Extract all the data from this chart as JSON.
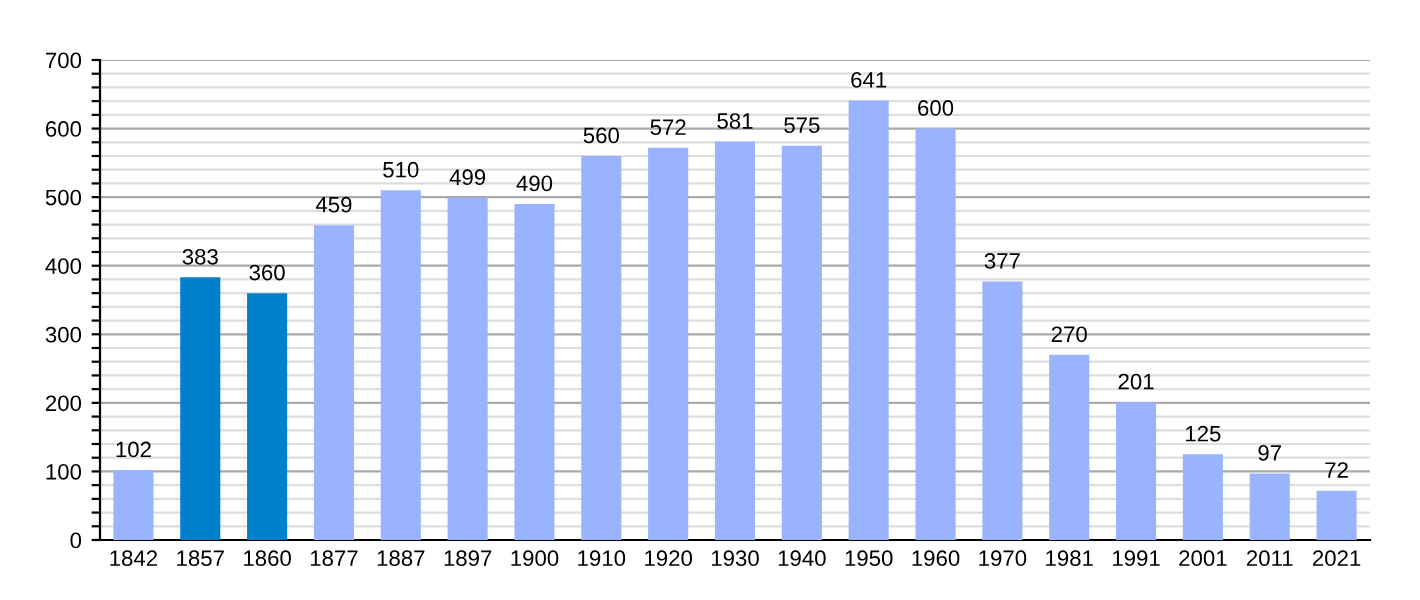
{
  "chart_data": {
    "type": "bar",
    "categories": [
      "1842",
      "1857",
      "1860",
      "1877",
      "1887",
      "1897",
      "1900",
      "1910",
      "1920",
      "1930",
      "1940",
      "1950",
      "1960",
      "1970",
      "1981",
      "1991",
      "2001",
      "2011",
      "2021"
    ],
    "values": [
      102,
      383,
      360,
      459,
      510,
      499,
      490,
      560,
      572,
      581,
      575,
      641,
      600,
      377,
      270,
      201,
      125,
      97,
      72
    ],
    "colors": [
      "#99b3ff",
      "#0080cc",
      "#0080cc",
      "#99b3ff",
      "#99b3ff",
      "#99b3ff",
      "#99b3ff",
      "#99b3ff",
      "#99b3ff",
      "#99b3ff",
      "#99b3ff",
      "#99b3ff",
      "#99b3ff",
      "#99b3ff",
      "#99b3ff",
      "#99b3ff",
      "#99b3ff",
      "#99b3ff",
      "#99b3ff"
    ],
    "ylim": [
      0,
      700
    ],
    "yticks": [
      0,
      {
        "value": 20,
        "label": null
      },
      {
        "value": 40,
        "label": null
      },
      {
        "value": 60,
        "label": null
      },
      {
        "value": 80,
        "label": null
      },
      100,
      {
        "value": 120,
        "label": null
      },
      {
        "value": 140,
        "label": null
      },
      {
        "value": 160,
        "label": null
      },
      {
        "value": 180,
        "label": null
      },
      200,
      {
        "value": 220,
        "label": null
      },
      {
        "value": 240,
        "label": null
      },
      {
        "value": 260,
        "label": null
      },
      {
        "value": 280,
        "label": null
      },
      300,
      {
        "value": 320,
        "label": null
      },
      {
        "value": 340,
        "label": null
      },
      {
        "value": 360,
        "label": null
      },
      {
        "value": 380,
        "label": null
      },
      400,
      {
        "value": 420,
        "label": null
      },
      {
        "value": 440,
        "label": null
      },
      {
        "value": 460,
        "label": null
      },
      {
        "value": 480,
        "label": null
      },
      500,
      {
        "value": 520,
        "label": null
      },
      {
        "value": 540,
        "label": null
      },
      {
        "value": 560,
        "label": null
      },
      {
        "value": 580,
        "label": null
      },
      600,
      {
        "value": 620,
        "label": null
      },
      {
        "value": 640,
        "label": null
      },
      {
        "value": 660,
        "label": null
      },
      {
        "value": 680,
        "label": null
      },
      700
    ],
    "grid": "y",
    "data_labels": true
  }
}
